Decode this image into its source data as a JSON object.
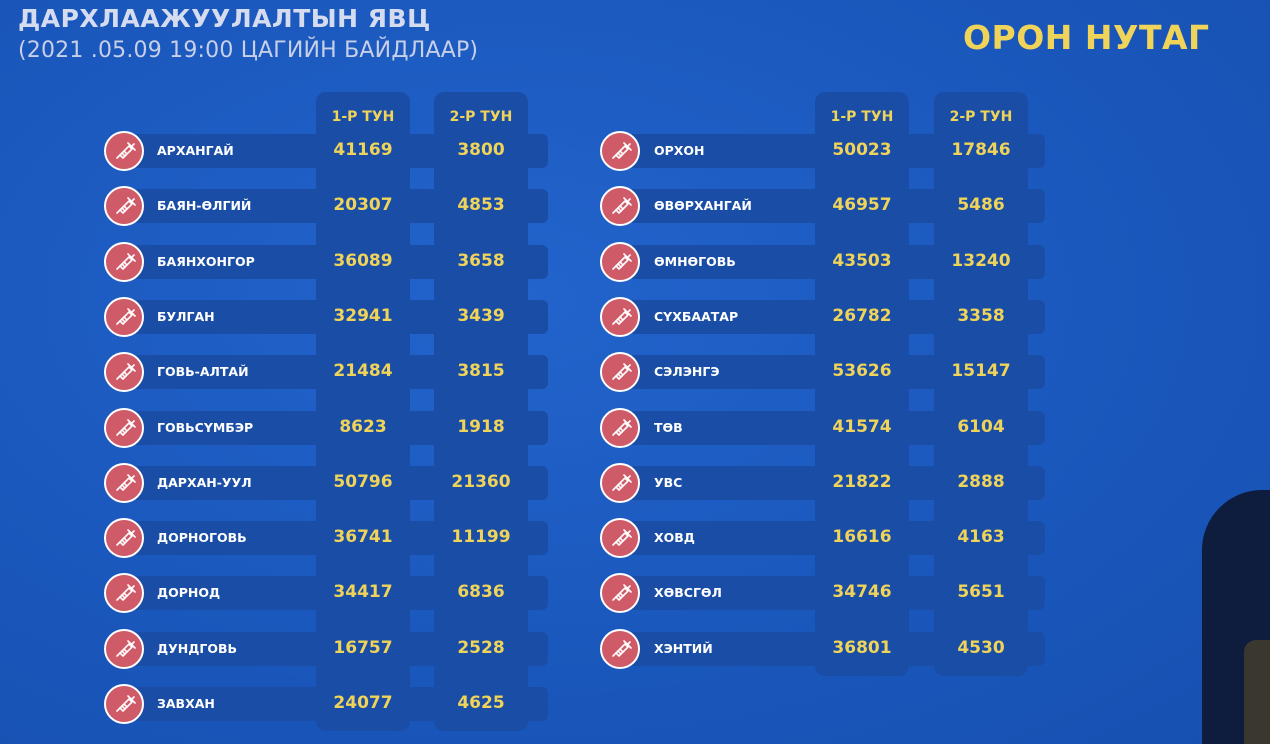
{
  "header": {
    "title": "ДАРХЛААЖУУЛАЛТЫН ЯВЦ",
    "subtitle": "(2021 .05.09     19:00 ЦАГИЙН БАЙДЛААР)",
    "brand": "ОРОН НУТАГ"
  },
  "columns": {
    "dose1": "1-Р ТУН",
    "dose2": "2-Р ТУН"
  },
  "icon": "syringe-icon",
  "colors": {
    "background": "#1c5cc4",
    "accent": "#f0d45a",
    "icon_bg": "#cf5a68",
    "band": "#1a4ea6"
  },
  "left_table": [
    {
      "name": "АРХАНГАЙ",
      "dose1": "41169",
      "dose2": "3800"
    },
    {
      "name": "БАЯН-ӨЛГИЙ",
      "dose1": "20307",
      "dose2": "4853"
    },
    {
      "name": "БАЯНХОНГОР",
      "dose1": "36089",
      "dose2": "3658"
    },
    {
      "name": "БУЛГАН",
      "dose1": "32941",
      "dose2": "3439"
    },
    {
      "name": "ГОВЬ-АЛТАЙ",
      "dose1": "21484",
      "dose2": "3815"
    },
    {
      "name": "ГОВЬСҮМБЭР",
      "dose1": "8623",
      "dose2": "1918"
    },
    {
      "name": "ДАРХАН-УУЛ",
      "dose1": "50796",
      "dose2": "21360"
    },
    {
      "name": "ДОРНОГОВЬ",
      "dose1": "36741",
      "dose2": "11199"
    },
    {
      "name": "ДОРНОД",
      "dose1": "34417",
      "dose2": "6836"
    },
    {
      "name": "ДУНДГОВЬ",
      "dose1": "16757",
      "dose2": "2528"
    },
    {
      "name": "ЗАВХАН",
      "dose1": "24077",
      "dose2": "4625"
    }
  ],
  "right_table": [
    {
      "name": "ОРХОН",
      "dose1": "50023",
      "dose2": "17846"
    },
    {
      "name": "ӨВӨРХАНГАЙ",
      "dose1": "46957",
      "dose2": "5486"
    },
    {
      "name": "ӨМНӨГОВЬ",
      "dose1": "43503",
      "dose2": "13240"
    },
    {
      "name": "СҮХБААТАР",
      "dose1": "26782",
      "dose2": "3358"
    },
    {
      "name": "СЭЛЭНГЭ",
      "dose1": "53626",
      "dose2": "15147"
    },
    {
      "name": "ТӨВ",
      "dose1": "41574",
      "dose2": "6104"
    },
    {
      "name": "УВС",
      "dose1": "21822",
      "dose2": "2888"
    },
    {
      "name": "ХОВД",
      "dose1": "16616",
      "dose2": "4163"
    },
    {
      "name": "ХӨВСГӨЛ",
      "dose1": "34746",
      "dose2": "5651"
    },
    {
      "name": "ХЭНТИЙ",
      "dose1": "36801",
      "dose2": "4530"
    }
  ]
}
